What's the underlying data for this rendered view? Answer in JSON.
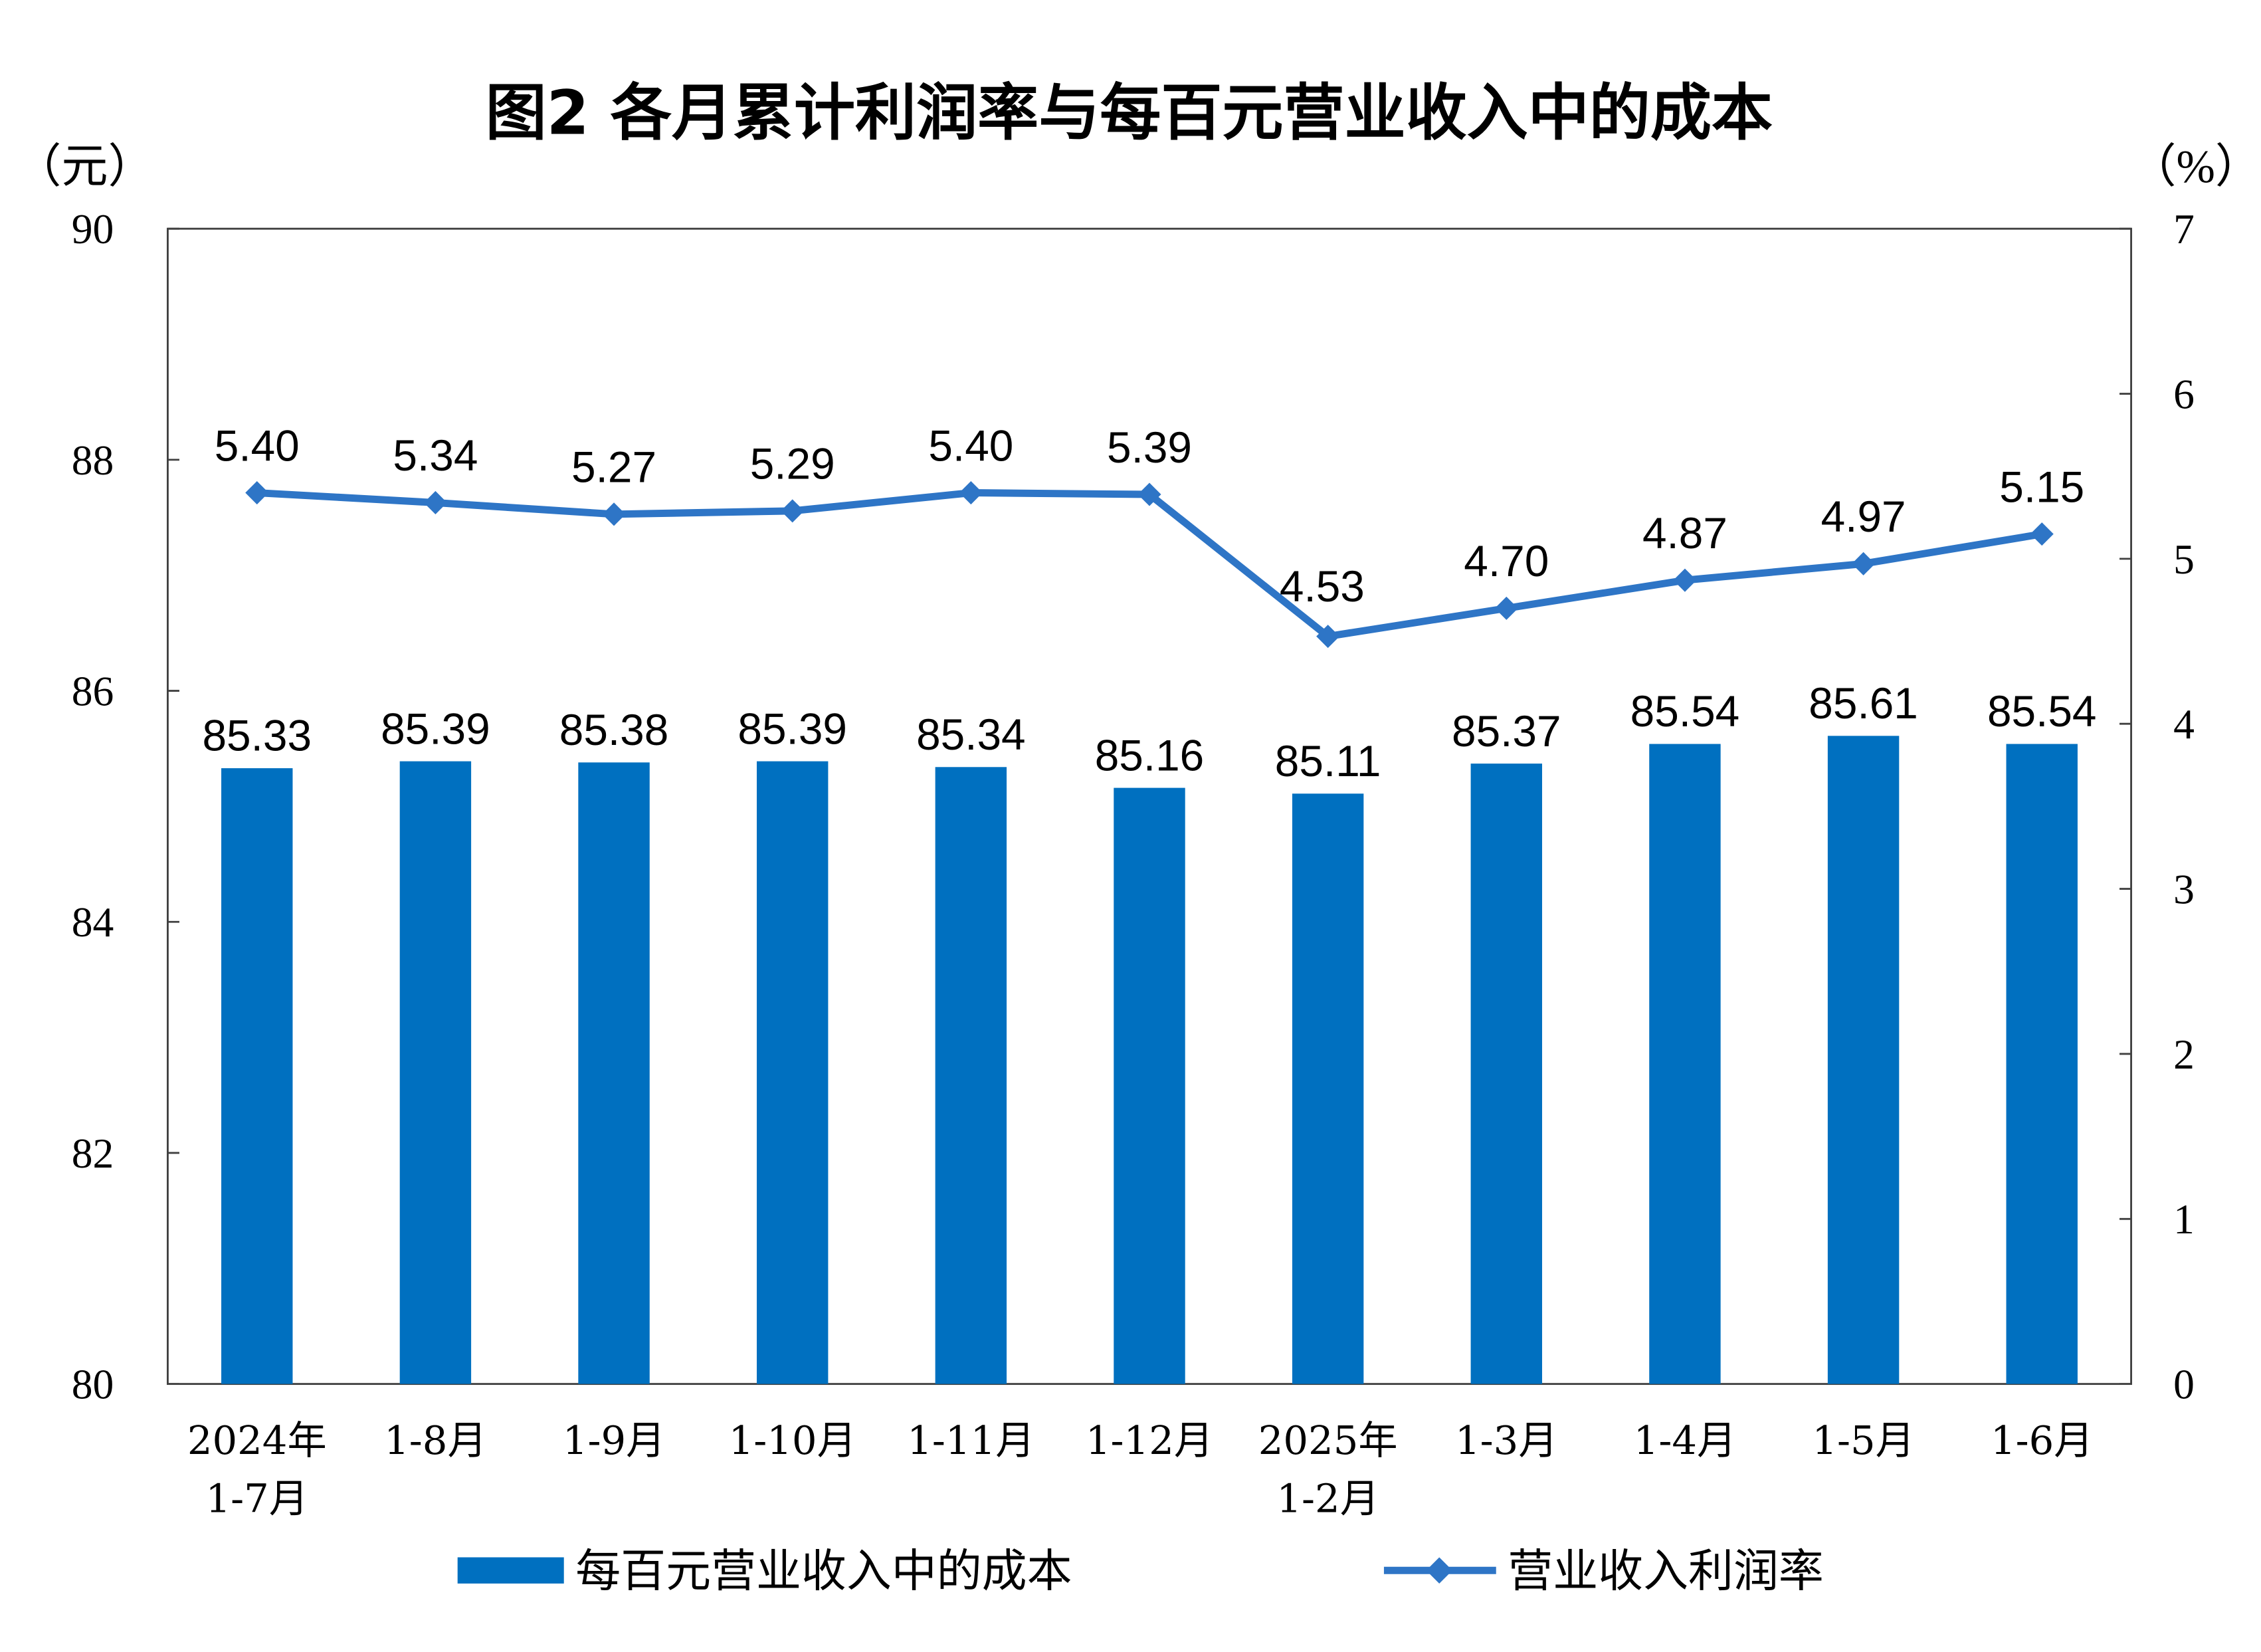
{
  "chart_data": {
    "type": "bar+line",
    "title": "图2  各月累计利润率与每百元营业收入中的成本",
    "left_axis": {
      "unit_label": "（元）",
      "ylim": [
        80,
        90
      ],
      "ticks": [
        "80",
        "82",
        "84",
        "86",
        "88",
        "90"
      ]
    },
    "right_axis": {
      "unit_label": "（%）",
      "ylim": [
        0,
        7
      ],
      "ticks": [
        "0",
        "1",
        "2",
        "3",
        "4",
        "5",
        "6",
        "7"
      ]
    },
    "categories": [
      [
        "2024年",
        "1-7月"
      ],
      [
        "1-8月"
      ],
      [
        "1-9月"
      ],
      [
        "1-10月"
      ],
      [
        "1-11月"
      ],
      [
        "1-12月"
      ],
      [
        "2025年",
        "1-2月"
      ],
      [
        "1-3月"
      ],
      [
        "1-4月"
      ],
      [
        "1-5月"
      ],
      [
        "1-6月"
      ]
    ],
    "series": [
      {
        "name": "每百元营业收入中的成本",
        "type": "bar",
        "axis": "left",
        "color": "#0070C0",
        "values": [
          85.33,
          85.39,
          85.38,
          85.39,
          85.34,
          85.16,
          85.11,
          85.37,
          85.54,
          85.61,
          85.54
        ],
        "labels": [
          "85.33",
          "85.39",
          "85.38",
          "85.39",
          "85.34",
          "85.16",
          "85.11",
          "85.37",
          "85.54",
          "85.61",
          "85.54"
        ]
      },
      {
        "name": "营业收入利润率",
        "type": "line",
        "axis": "right",
        "marker": "diamond",
        "color": "#2E75C6",
        "values": [
          5.4,
          5.34,
          5.27,
          5.29,
          5.4,
          5.39,
          4.53,
          4.7,
          4.87,
          4.97,
          5.15
        ],
        "labels": [
          "5.40",
          "5.34",
          "5.27",
          "5.29",
          "5.40",
          "5.39",
          "4.53",
          "4.70",
          "4.87",
          "4.97",
          "5.15"
        ]
      }
    ],
    "grid": false,
    "legend": "bottom"
  }
}
